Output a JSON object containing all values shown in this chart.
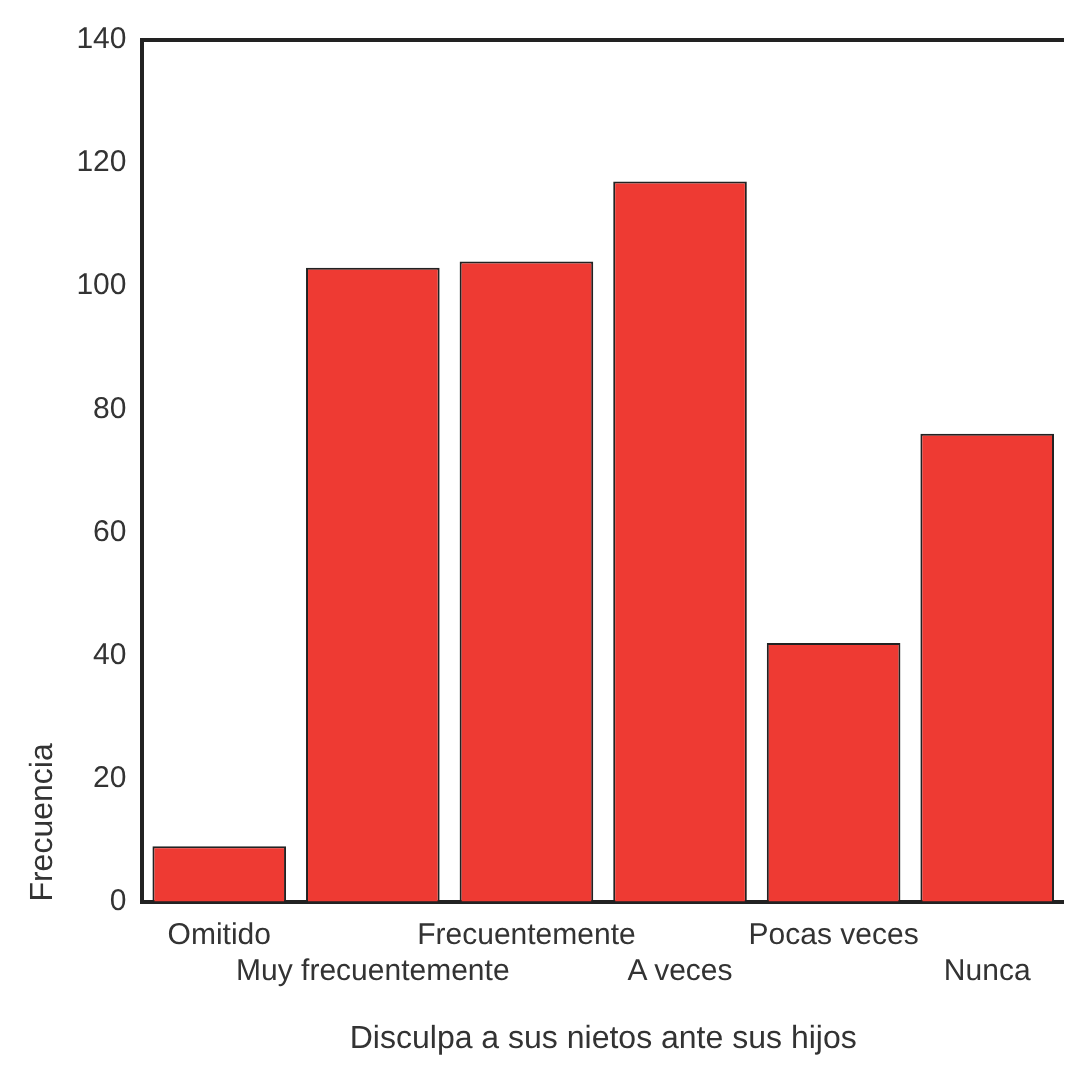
{
  "chart_data": {
    "type": "bar",
    "xlabel": "Disculpa a sus nietos ante sus hijos",
    "ylabel": "Frecuencia",
    "categories": [
      "Omitido",
      "Muy frecuentemente",
      "Frecuentemente",
      "A veces",
      "Pocas veces",
      "Nunca"
    ],
    "values": [
      9,
      103,
      104,
      117,
      42,
      76
    ],
    "color": "#ee3a33",
    "ylim": [
      0,
      140
    ],
    "yticks": [
      0,
      20,
      40,
      60,
      80,
      100,
      120,
      140
    ],
    "grid": false,
    "legend": false
  }
}
